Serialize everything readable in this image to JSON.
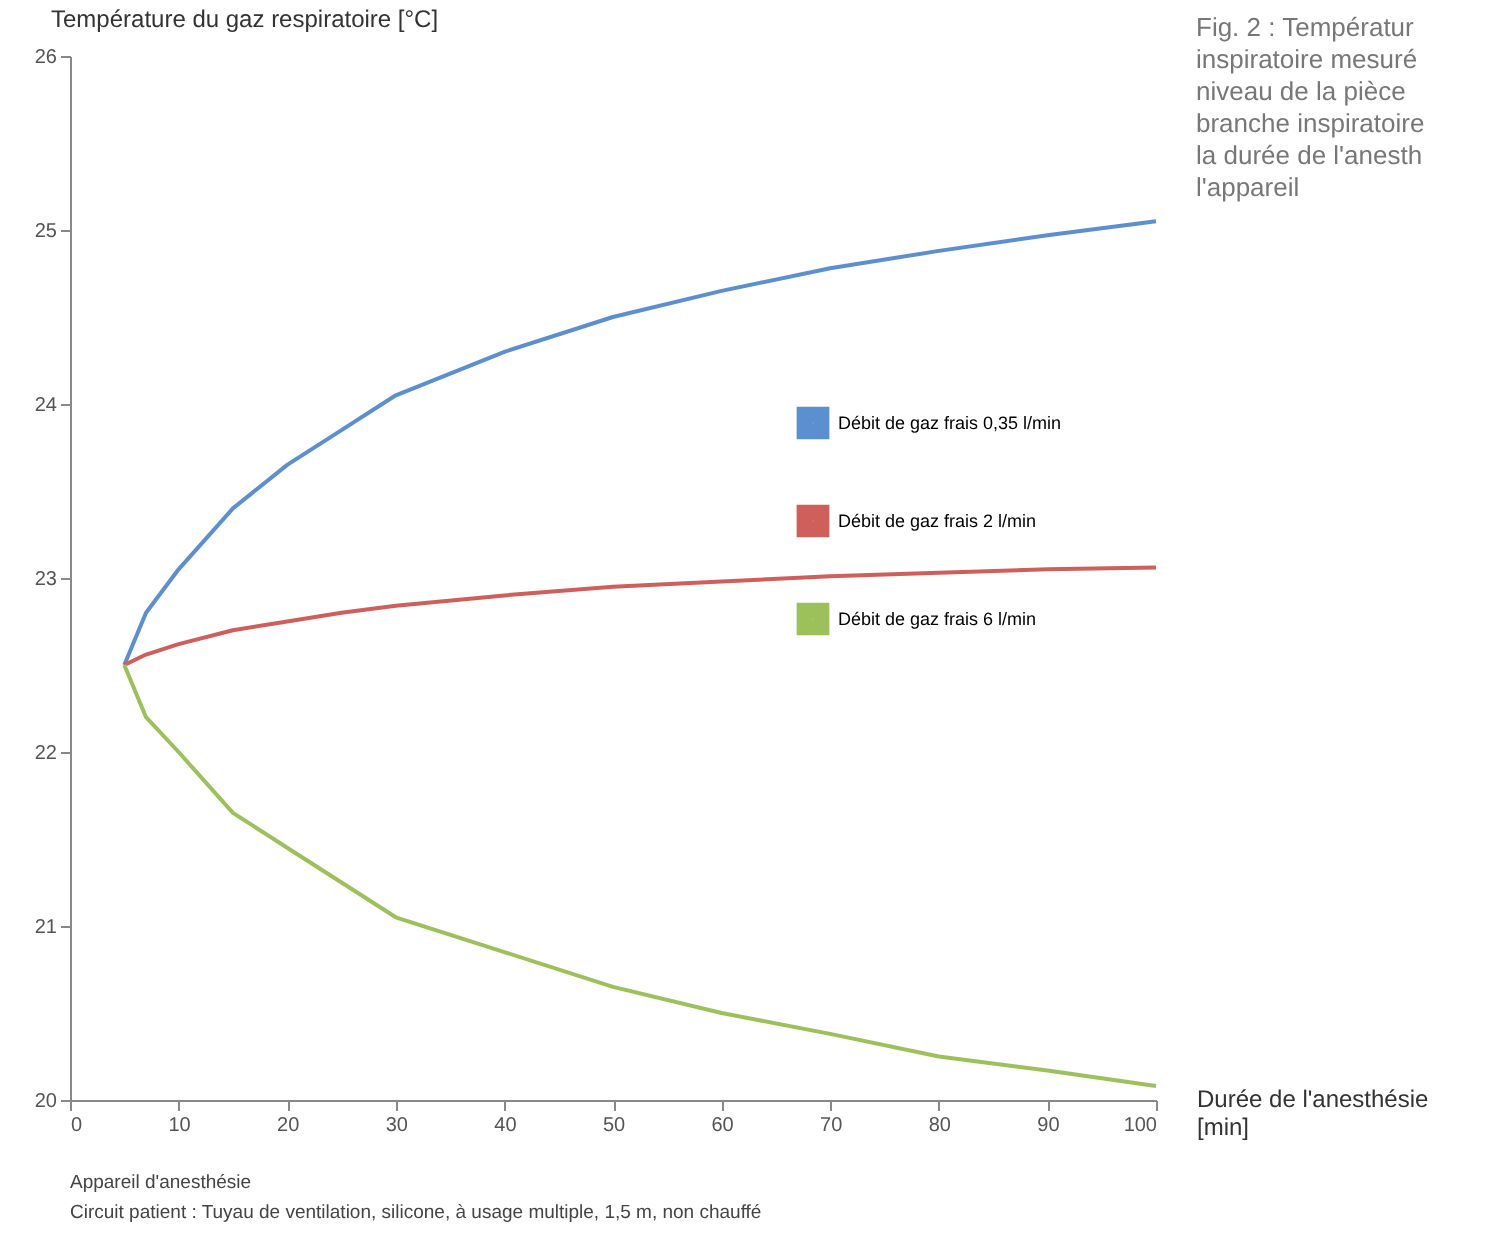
{
  "chart_data": {
    "type": "line",
    "xlabel": "Durée de l'anesthésie [min]",
    "ylabel": "Température du gaz respiratoire [°C]",
    "x": [
      5,
      7,
      10,
      15,
      20,
      25,
      30,
      40,
      50,
      60,
      70,
      80,
      90,
      100
    ],
    "series": [
      {
        "name": "Débit de gaz frais 0,35 l/min",
        "color": "#5b8fcf",
        "values": [
          22.5,
          22.8,
          23.05,
          23.4,
          23.65,
          23.85,
          24.05,
          24.3,
          24.5,
          24.65,
          24.78,
          24.88,
          24.97,
          25.05
        ]
      },
      {
        "name": "Débit de gaz frais 2 l/min",
        "color": "#cf5f5a",
        "values": [
          22.5,
          22.56,
          22.62,
          22.7,
          22.75,
          22.8,
          22.84,
          22.9,
          22.95,
          22.98,
          23.01,
          23.03,
          23.05,
          23.06
        ]
      },
      {
        "name": "Débit de gaz frais 6 l/min",
        "color": "#9cc15a",
        "values": [
          22.5,
          22.2,
          22.0,
          21.65,
          21.45,
          21.25,
          21.05,
          20.85,
          20.65,
          20.5,
          20.38,
          20.25,
          20.17,
          20.08
        ]
      }
    ],
    "xlim": [
      0,
      100
    ],
    "xticks": [
      0,
      10,
      20,
      30,
      40,
      50,
      60,
      70,
      80,
      90,
      100
    ],
    "ylim": [
      20,
      26
    ],
    "yticks": [
      20,
      21,
      22,
      23,
      24,
      25,
      26
    ],
    "grid": false,
    "legend": "right",
    "marker": "none",
    "line_style": "solid",
    "annotations": [
      "Fig. 2 : Températur\ninspiratoire mesuré\nniveau de la pièce\nbranche inspiratoire\nla durée de l'anesth\nl'appareil",
      "Appareil d'anesthésie",
      "Circuit patient : Tuyau de ventilation, silicone, à usage multiple, 1,5 m, non chauffé"
    ]
  }
}
